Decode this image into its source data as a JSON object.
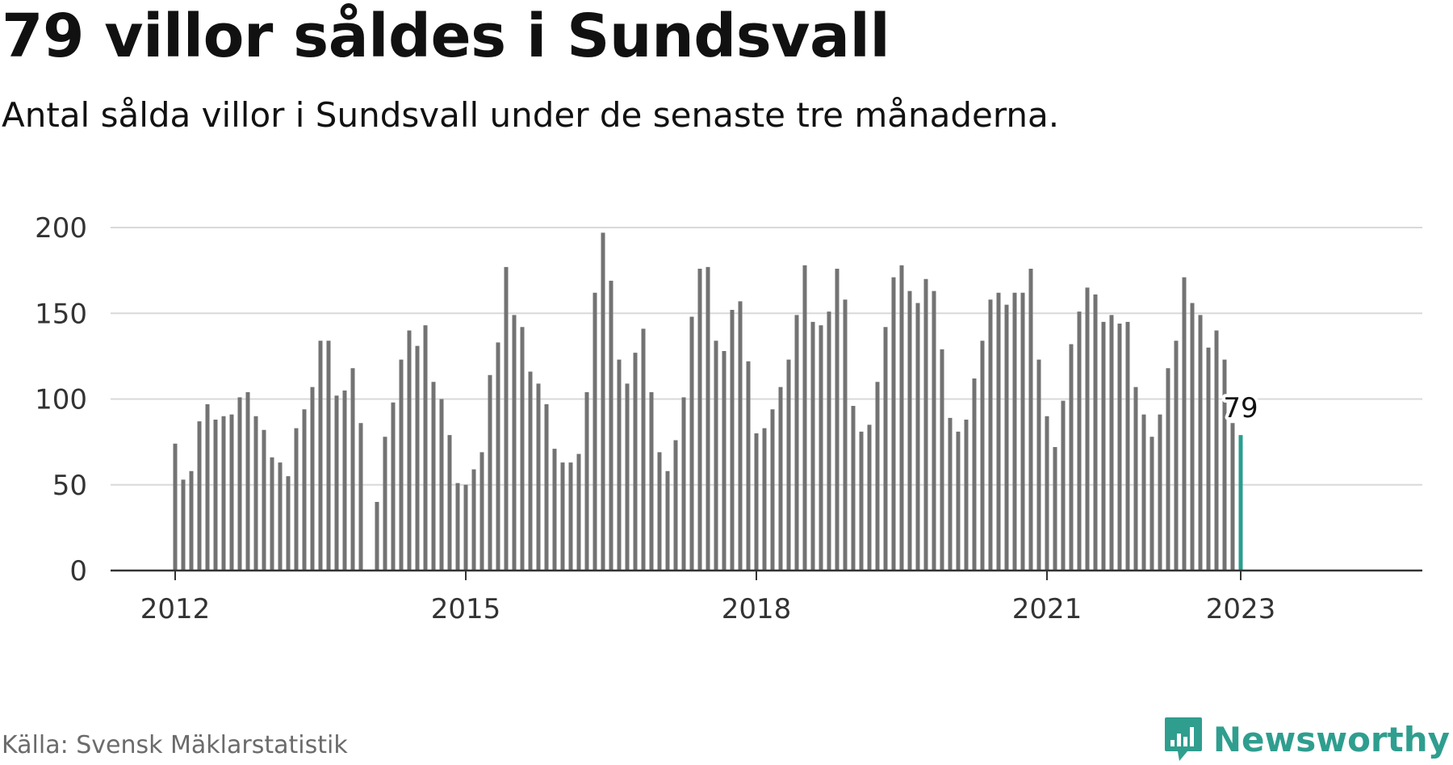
{
  "title": "79 villor såldes i Sundsvall",
  "subtitle": "Antal sålda villor i Sundsvall under de senaste tre månaderna.",
  "source": "Källa: Svensk Mäklarstatistik",
  "brand": {
    "name": "Newsworthy",
    "icon": "newsworthy-logo-icon"
  },
  "colors": {
    "bar": "#737373",
    "highlight": "#2a9d8f",
    "grid": "#d9d9d9",
    "axis": "#333333",
    "brand": "#2f9e8f"
  },
  "chart_data": {
    "type": "bar",
    "title": "79 villor såldes i Sundsvall",
    "subtitle": "Antal sålda villor i Sundsvall under de senaste tre månaderna.",
    "xlabel": "",
    "ylabel": "",
    "ylim": [
      0,
      200
    ],
    "yticks": [
      0,
      50,
      100,
      150,
      200
    ],
    "xticks": [
      "2012",
      "2015",
      "2018",
      "2021",
      "2023"
    ],
    "grid": true,
    "x_start": "2012-01",
    "x_step": "month",
    "values": [
      74,
      53,
      58,
      87,
      97,
      88,
      90,
      91,
      101,
      104,
      90,
      82,
      66,
      63,
      55,
      83,
      94,
      107,
      134,
      134,
      102,
      105,
      118,
      86,
      null,
      40,
      78,
      98,
      123,
      140,
      131,
      143,
      110,
      100,
      79,
      51,
      50,
      59,
      69,
      114,
      133,
      177,
      149,
      142,
      116,
      109,
      97,
      71,
      63,
      63,
      68,
      104,
      162,
      197,
      169,
      123,
      109,
      127,
      141,
      104,
      69,
      58,
      76,
      101,
      148,
      176,
      177,
      134,
      128,
      152,
      157,
      122,
      80,
      83,
      94,
      107,
      123,
      149,
      178,
      145,
      143,
      151,
      176,
      158,
      96,
      81,
      85,
      110,
      142,
      171,
      178,
      163,
      156,
      170,
      163,
      129,
      89,
      81,
      88,
      112,
      134,
      158,
      162,
      155,
      162,
      162,
      176,
      123,
      90,
      72,
      99,
      132,
      151,
      165,
      161,
      145,
      149,
      144,
      145,
      107,
      91,
      78,
      91,
      118,
      134,
      171,
      156,
      149,
      130,
      140,
      123,
      86,
      79
    ],
    "highlight": {
      "label": "79",
      "value": 79
    }
  }
}
